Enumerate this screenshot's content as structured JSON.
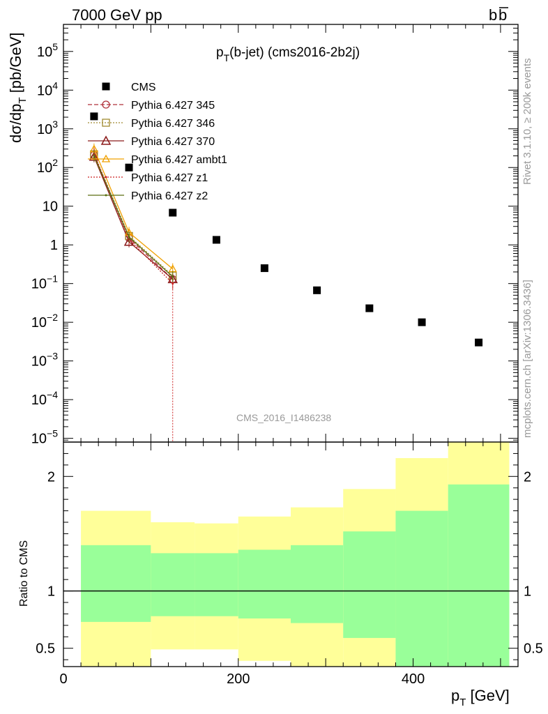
{
  "header": {
    "left": "7000 GeV pp",
    "right": "b",
    "right_bar": "b"
  },
  "side_labels": {
    "rivet": "Rivet 3.1.10, ≥ 200k events",
    "mcplots": "mcplots.cern.ch [arXiv:1306.3436]"
  },
  "watermark": "CMS_2016_I1486238",
  "chart_data": [
    {
      "type": "scatter",
      "panel": "main",
      "title_main": "p",
      "title_sub": "T",
      "title_rest": "(b-jet) (cms2016-2b2j)",
      "ylabel": "dσ/dp",
      "ylabel_sub": "T",
      "ylabel_unit": " [pb/GeV]",
      "yscale": "log",
      "xlim": [
        0,
        520
      ],
      "ylim": [
        8e-06,
        500000.0
      ],
      "ytick_labels": [
        {
          "value": 100000.0,
          "base": "10",
          "exp": "5"
        },
        {
          "value": 10000.0,
          "base": "10",
          "exp": "4"
        },
        {
          "value": 1000.0,
          "base": "10",
          "exp": "3"
        },
        {
          "value": 100.0,
          "base": "10",
          "exp": "2"
        },
        {
          "value": 10,
          "base": "10",
          "exp": ""
        },
        {
          "value": 1,
          "base": "1",
          "exp": ""
        },
        {
          "value": 0.1,
          "base": "10",
          "exp": "−1"
        },
        {
          "value": 0.01,
          "base": "10",
          "exp": "−2"
        },
        {
          "value": 0.001,
          "base": "10",
          "exp": "−3"
        },
        {
          "value": 0.0001,
          "base": "10",
          "exp": "−4"
        },
        {
          "value": 1e-05,
          "base": "10",
          "exp": "−5"
        }
      ],
      "series": [
        {
          "name": "CMS",
          "color": "#000000",
          "marker": "square",
          "x": [
            35,
            75,
            125,
            175,
            230,
            290,
            350,
            410,
            475
          ],
          "y": [
            2100,
            100,
            6.8,
            1.35,
            0.25,
            0.067,
            0.023,
            0.01,
            0.003
          ]
        },
        {
          "name": "Pythia 6.427 345",
          "color": "#b0303a",
          "marker": "circle",
          "dash": "6,3",
          "x": [
            35,
            75,
            125
          ],
          "y": [
            210,
            1.5,
            0.13
          ]
        },
        {
          "name": "Pythia 6.427 346",
          "color": "#a08a30",
          "marker": "open-square",
          "dash": "2,2",
          "x": [
            35,
            75,
            125
          ],
          "y": [
            220,
            1.7,
            0.16
          ]
        },
        {
          "name": "Pythia 6.427 370",
          "color": "#8b1a1a",
          "marker": "triangle",
          "dash": "",
          "x": [
            35,
            75,
            125
          ],
          "y": [
            190,
            1.2,
            0.13
          ]
        },
        {
          "name": "Pythia 6.427 ambt1",
          "color": "#f0a000",
          "marker": "open-triangle",
          "dash": "",
          "x": [
            35,
            75,
            125
          ],
          "y": [
            300,
            2.1,
            0.24
          ]
        },
        {
          "name": "Pythia 6.427 z1",
          "color": "#cc2020",
          "marker": "dot",
          "dash": "2,2",
          "x": [
            35,
            75,
            125
          ],
          "y": [
            230,
            1.4,
            0.1
          ]
        },
        {
          "name": "Pythia 6.427 z2",
          "color": "#5a6e10",
          "marker": "dot",
          "dash": "",
          "x": [
            35,
            75,
            125
          ],
          "y": [
            200,
            1.6,
            0.15
          ]
        }
      ]
    },
    {
      "type": "area",
      "panel": "ratio",
      "ylabel": "Ratio to CMS",
      "xlabel": "p",
      "xlabel_sub": "T",
      "xlabel_unit": " [GeV]",
      "xlim": [
        0,
        520
      ],
      "ylim": [
        0.34,
        2.3
      ],
      "xtick_labels": [
        "0",
        "200",
        "400"
      ],
      "xtick_values": [
        0,
        200,
        400
      ],
      "ytick_labels": [
        "2",
        "1",
        "0.5"
      ],
      "ytick_values": [
        2,
        1,
        0.5
      ],
      "reference_line": 1,
      "colors": {
        "outer": "#ffff99",
        "inner": "#99ff99"
      },
      "bins": [
        {
          "x0": 20,
          "x1": 100,
          "outer_lo": 0.34,
          "outer_hi": 1.7,
          "inner_lo": 0.73,
          "inner_hi": 1.4
        },
        {
          "x0": 100,
          "x1": 150,
          "outer_lo": 0.49,
          "outer_hi": 1.6,
          "inner_lo": 0.78,
          "inner_hi": 1.33
        },
        {
          "x0": 150,
          "x1": 200,
          "outer_lo": 0.49,
          "outer_hi": 1.59,
          "inner_lo": 0.78,
          "inner_hi": 1.33
        },
        {
          "x0": 200,
          "x1": 260,
          "outer_lo": 0.39,
          "outer_hi": 1.65,
          "inner_lo": 0.76,
          "inner_hi": 1.36
        },
        {
          "x0": 260,
          "x1": 320,
          "outer_lo": 0.34,
          "outer_hi": 1.73,
          "inner_lo": 0.72,
          "inner_hi": 1.4
        },
        {
          "x0": 320,
          "x1": 380,
          "outer_lo": 0.34,
          "outer_hi": 1.89,
          "inner_lo": 0.59,
          "inner_hi": 1.52
        },
        {
          "x0": 380,
          "x1": 440,
          "outer_lo": 0.34,
          "outer_hi": 2.16,
          "inner_lo": 0.34,
          "inner_hi": 1.7
        },
        {
          "x0": 440,
          "x1": 510,
          "outer_lo": 0.34,
          "outer_hi": 2.3,
          "inner_lo": 0.34,
          "inner_hi": 1.93
        }
      ]
    }
  ]
}
